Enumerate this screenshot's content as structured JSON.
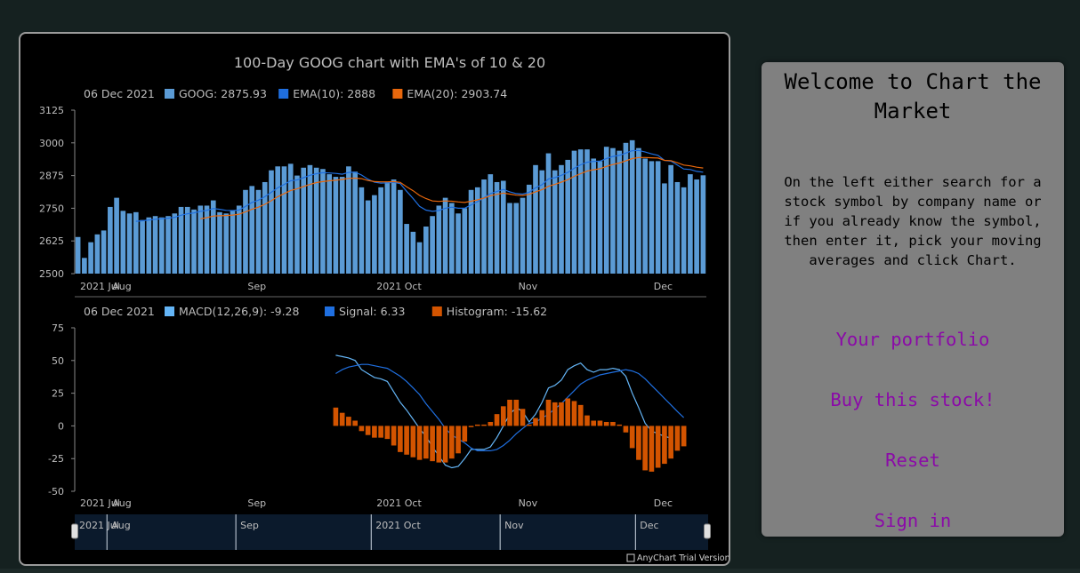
{
  "chart": {
    "title": "100-Day GOOG chart with EMA's of 10 & 20",
    "price_legend": {
      "date": "06 Dec 2021",
      "items": [
        {
          "label": "GOOG: 2875.93",
          "color": "#5b9bd5"
        },
        {
          "label": "EMA(10): 2888",
          "color": "#1f6fe0"
        },
        {
          "label": "EMA(20): 2903.74",
          "color": "#e8670c"
        }
      ]
    },
    "macd_legend": {
      "date": "06 Dec 2021",
      "items": [
        {
          "label": "MACD(12,26,9): -9.28",
          "color": "#64b5f6"
        },
        {
          "label": "Signal: 6.33",
          "color": "#1f6fe0"
        },
        {
          "label": "Histogram: -15.62",
          "color": "#d35400"
        }
      ]
    },
    "x_labels": [
      "2021 Jul",
      "Aug",
      "Sep",
      "2021 Oct",
      "Nov",
      "Dec"
    ],
    "scroller_labels": [
      "2021 Jul",
      "Aug",
      "Sep",
      "2021 Oct",
      "Nov",
      "Dec"
    ],
    "credit": "AnyChart Trial Version"
  },
  "chart_data": [
    {
      "type": "bar",
      "title": "100-Day GOOG chart with EMA's of 10 & 20",
      "ylim": [
        2500,
        3125
      ],
      "y_ticks": [
        2500,
        2625,
        2750,
        2875,
        3000,
        3125
      ],
      "series": [
        {
          "name": "GOOG",
          "type": "bar",
          "values": [
            2640,
            2560,
            2620,
            2650,
            2665,
            2755,
            2790,
            2740,
            2730,
            2735,
            2705,
            2715,
            2720,
            2715,
            2720,
            2730,
            2755,
            2755,
            2745,
            2760,
            2760,
            2780,
            2735,
            2730,
            2740,
            2760,
            2820,
            2835,
            2820,
            2850,
            2895,
            2910,
            2910,
            2920,
            2875,
            2905,
            2915,
            2905,
            2900,
            2880,
            2870,
            2870,
            2910,
            2890,
            2830,
            2780,
            2800,
            2830,
            2850,
            2860,
            2820,
            2690,
            2660,
            2620,
            2680,
            2720,
            2760,
            2790,
            2770,
            2730,
            2750,
            2820,
            2830,
            2860,
            2880,
            2850,
            2855,
            2770,
            2770,
            2790,
            2840,
            2915,
            2895,
            2960,
            2895,
            2915,
            2935,
            2970,
            2975,
            2975,
            2940,
            2930,
            2985,
            2980,
            2970,
            3000,
            3010,
            2980,
            2940,
            2930,
            2930,
            2845,
            2915,
            2850,
            2830,
            2880,
            2860,
            2875.93
          ]
        },
        {
          "name": "EMA(10)",
          "type": "line",
          "values": [
            null,
            null,
            null,
            null,
            null,
            null,
            null,
            null,
            null,
            2700,
            2702,
            2705,
            2708,
            2710,
            2712,
            2715,
            2723,
            2729,
            2732,
            2738,
            2742,
            2749,
            2746,
            2742,
            2741,
            2743,
            2757,
            2772,
            2781,
            2794,
            2811,
            2828,
            2841,
            2855,
            2858,
            2867,
            2876,
            2882,
            2886,
            2885,
            2883,
            2880,
            2887,
            2888,
            2877,
            2861,
            2850,
            2846,
            2847,
            2849,
            2844,
            2815,
            2787,
            2757,
            2743,
            2738,
            2741,
            2750,
            2754,
            2750,
            2750,
            2763,
            2775,
            2790,
            2806,
            2814,
            2822,
            2813,
            2806,
            2804,
            2811,
            2828,
            2840,
            2862,
            2867,
            2876,
            2887,
            2903,
            2916,
            2926,
            2929,
            2930,
            2940,
            2948,
            2952,
            2961,
            2970,
            2971,
            2965,
            2958,
            2952,
            2933,
            2930,
            2915,
            2900,
            2898,
            2891,
            2888
          ]
        },
        {
          "name": "EMA(20)",
          "type": "line",
          "values": [
            null,
            null,
            null,
            null,
            null,
            null,
            null,
            null,
            null,
            null,
            null,
            null,
            null,
            null,
            null,
            null,
            null,
            null,
            null,
            2710,
            2714,
            2720,
            2721,
            2722,
            2724,
            2727,
            2736,
            2746,
            2754,
            2765,
            2779,
            2794,
            2806,
            2818,
            2824,
            2833,
            2841,
            2848,
            2852,
            2855,
            2857,
            2860,
            2864,
            2865,
            2863,
            2856,
            2852,
            2851,
            2851,
            2852,
            2849,
            2832,
            2817,
            2799,
            2787,
            2778,
            2776,
            2778,
            2777,
            2774,
            2772,
            2777,
            2782,
            2789,
            2798,
            2803,
            2808,
            2804,
            2800,
            2799,
            2803,
            2813,
            2821,
            2834,
            2841,
            2850,
            2859,
            2872,
            2882,
            2892,
            2897,
            2901,
            2910,
            2917,
            2923,
            2931,
            2940,
            2944,
            2944,
            2943,
            2942,
            2933,
            2932,
            2924,
            2915,
            2912,
            2907,
            2903.74
          ]
        }
      ]
    },
    {
      "type": "bar",
      "ylim": [
        -50,
        75
      ],
      "y_ticks": [
        -50,
        -25,
        0,
        25,
        50,
        75
      ],
      "series": [
        {
          "name": "MACD(12,26,9)",
          "type": "line",
          "values": [
            null,
            null,
            null,
            null,
            null,
            null,
            null,
            null,
            null,
            null,
            null,
            null,
            null,
            null,
            null,
            null,
            null,
            null,
            null,
            null,
            null,
            null,
            null,
            null,
            null,
            null,
            null,
            null,
            null,
            null,
            null,
            null,
            null,
            null,
            null,
            null,
            null,
            null,
            null,
            null,
            54,
            53,
            52,
            50,
            43,
            40,
            37,
            36,
            34,
            26,
            18,
            12,
            5,
            -2,
            -8,
            -16,
            -23,
            -30,
            -32,
            -31,
            -25,
            -18,
            -18,
            -18,
            -16,
            -9,
            0,
            9,
            14,
            11,
            3,
            9,
            18,
            29,
            31,
            35,
            43,
            46,
            48,
            43,
            41,
            43,
            43,
            44,
            43,
            38,
            25,
            14,
            2,
            -4,
            -6,
            -8,
            -9.28
          ]
        },
        {
          "name": "Signal",
          "type": "line",
          "values": [
            null,
            null,
            null,
            null,
            null,
            null,
            null,
            null,
            null,
            null,
            null,
            null,
            null,
            null,
            null,
            null,
            null,
            null,
            null,
            null,
            null,
            null,
            null,
            null,
            null,
            null,
            null,
            null,
            null,
            null,
            null,
            null,
            null,
            null,
            null,
            null,
            null,
            null,
            null,
            null,
            40,
            43,
            45,
            46,
            47,
            47,
            46,
            45,
            44,
            41,
            38,
            34,
            29,
            24,
            17,
            11,
            5,
            -2,
            -7,
            -10,
            -13,
            -17,
            -19,
            -19,
            -19,
            -18,
            -15,
            -11,
            -6,
            -2,
            2,
            3,
            6,
            9,
            13,
            17,
            22,
            27,
            32,
            35,
            37,
            39,
            40,
            41,
            42,
            43,
            42,
            40,
            36,
            31,
            26,
            21,
            16,
            11,
            6.33
          ]
        },
        {
          "name": "Histogram",
          "type": "bar",
          "values": [
            null,
            null,
            null,
            null,
            null,
            null,
            null,
            null,
            null,
            null,
            null,
            null,
            null,
            null,
            null,
            null,
            null,
            null,
            null,
            null,
            null,
            null,
            null,
            null,
            null,
            null,
            null,
            null,
            null,
            null,
            null,
            null,
            null,
            null,
            null,
            null,
            null,
            null,
            null,
            null,
            14,
            10,
            7,
            4,
            -4,
            -7,
            -9,
            -9,
            -10,
            -15,
            -20,
            -22,
            -24,
            -26,
            -25,
            -27,
            -28,
            -28,
            -25,
            -21,
            -12,
            -1,
            1,
            1,
            3,
            9,
            15,
            20,
            20,
            13,
            1,
            6,
            12,
            20,
            18,
            18,
            21,
            19,
            16,
            8,
            4,
            4,
            3,
            3,
            1,
            -5,
            -17,
            -26,
            -34,
            -35,
            -32,
            -29,
            -25,
            -19,
            -15.62
          ]
        }
      ]
    }
  ],
  "side_panel": {
    "title": "Welcome to Chart the Market",
    "body": "On the left either search for a stock symbol by company name or if you already know the symbol, then enter it, pick your moving averages and click Chart.",
    "links": {
      "portfolio": "Your portfolio",
      "buy": "Buy this stock!",
      "reset": "Reset",
      "signin": "Sign in"
    },
    "link_color": "#8b0aa8"
  }
}
